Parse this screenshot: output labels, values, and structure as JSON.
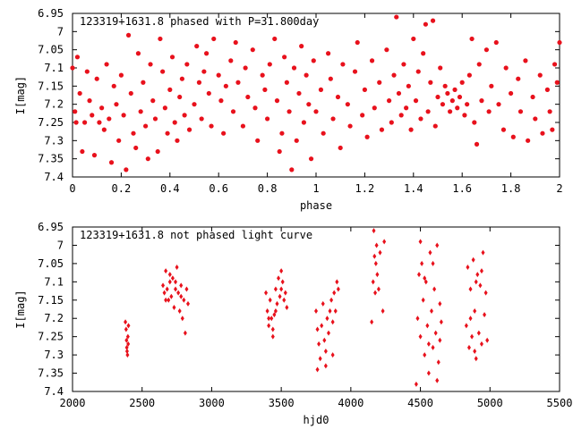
{
  "chart_data": [
    {
      "type": "scatter",
      "title": "123319+1631.8 phased with P=31.800day",
      "xlabel": "phase",
      "ylabel": "I[mag]",
      "xlim": [
        0,
        2
      ],
      "ylim": [
        6.95,
        7.4
      ],
      "y_inverted": true,
      "grid": false,
      "marker": "filled circle",
      "color": "#e8111c",
      "xticks": [
        0,
        0.2,
        0.4,
        0.6,
        0.8,
        1,
        1.2,
        1.4,
        1.6,
        1.8,
        2
      ],
      "xtick_labels": [
        "0",
        "0.2",
        "0.4",
        "0.6",
        "0.8",
        "1",
        "1.2",
        "1.4",
        "1.6",
        "1.8",
        "2"
      ],
      "yticks": [
        6.95,
        7,
        7.05,
        7.1,
        7.15,
        7.2,
        7.25,
        7.3,
        7.35,
        7.4
      ],
      "ytick_labels": [
        "6.95",
        "7",
        "7.05",
        "7.1",
        "7.15",
        "7.2",
        "7.25",
        "7.3",
        "7.35",
        "7.4"
      ],
      "points": [
        [
          0.0,
          7.1
        ],
        [
          0.01,
          7.22
        ],
        [
          0.015,
          7.25
        ],
        [
          0.02,
          7.07
        ],
        [
          0.03,
          7.17
        ],
        [
          0.04,
          7.33
        ],
        [
          0.05,
          7.25
        ],
        [
          0.06,
          7.11
        ],
        [
          0.07,
          7.19
        ],
        [
          0.08,
          7.23
        ],
        [
          0.09,
          7.34
        ],
        [
          0.1,
          7.13
        ],
        [
          0.11,
          7.25
        ],
        [
          0.12,
          7.21
        ],
        [
          0.13,
          7.27
        ],
        [
          0.14,
          7.09
        ],
        [
          0.15,
          7.24
        ],
        [
          0.16,
          7.36
        ],
        [
          0.17,
          7.15
        ],
        [
          0.18,
          7.2
        ],
        [
          0.19,
          7.3
        ],
        [
          0.2,
          7.12
        ],
        [
          0.21,
          7.23
        ],
        [
          0.22,
          7.38
        ],
        [
          0.23,
          7.01
        ],
        [
          0.24,
          7.17
        ],
        [
          0.25,
          7.28
        ],
        [
          0.26,
          7.32
        ],
        [
          0.27,
          7.06
        ],
        [
          0.28,
          7.22
        ],
        [
          0.29,
          7.14
        ],
        [
          0.3,
          7.26
        ],
        [
          0.31,
          7.35
        ],
        [
          0.32,
          7.09
        ],
        [
          0.33,
          7.19
        ],
        [
          0.34,
          7.24
        ],
        [
          0.35,
          7.33
        ],
        [
          0.36,
          7.02
        ],
        [
          0.37,
          7.11
        ],
        [
          0.38,
          7.21
        ],
        [
          0.39,
          7.28
        ],
        [
          0.4,
          7.16
        ],
        [
          0.41,
          7.07
        ],
        [
          0.42,
          7.25
        ],
        [
          0.43,
          7.3
        ],
        [
          0.44,
          7.18
        ],
        [
          0.45,
          7.13
        ],
        [
          0.46,
          7.23
        ],
        [
          0.47,
          7.09
        ],
        [
          0.48,
          7.27
        ],
        [
          0.5,
          7.2
        ],
        [
          0.51,
          7.04
        ],
        [
          0.52,
          7.14
        ],
        [
          0.53,
          7.24
        ],
        [
          0.54,
          7.11
        ],
        [
          0.55,
          7.06
        ],
        [
          0.56,
          7.17
        ],
        [
          0.57,
          7.26
        ],
        [
          0.58,
          7.02
        ],
        [
          0.6,
          7.12
        ],
        [
          0.61,
          7.19
        ],
        [
          0.62,
          7.28
        ],
        [
          0.63,
          7.15
        ],
        [
          0.65,
          7.08
        ],
        [
          0.66,
          7.22
        ],
        [
          0.67,
          7.03
        ],
        [
          0.68,
          7.14
        ],
        [
          0.7,
          7.26
        ],
        [
          0.71,
          7.1
        ],
        [
          0.72,
          7.18
        ],
        [
          0.74,
          7.05
        ],
        [
          0.75,
          7.21
        ],
        [
          0.76,
          7.3
        ],
        [
          0.78,
          7.12
        ],
        [
          0.79,
          7.16
        ],
        [
          0.8,
          7.24
        ],
        [
          0.81,
          7.09
        ],
        [
          0.83,
          7.02
        ],
        [
          0.84,
          7.19
        ],
        [
          0.85,
          7.33
        ],
        [
          0.86,
          7.28
        ],
        [
          0.87,
          7.07
        ],
        [
          0.88,
          7.14
        ],
        [
          0.89,
          7.22
        ],
        [
          0.9,
          7.38
        ],
        [
          0.91,
          7.1
        ],
        [
          0.92,
          7.3
        ],
        [
          0.93,
          7.17
        ],
        [
          0.94,
          7.04
        ],
        [
          0.95,
          7.25
        ],
        [
          0.96,
          7.12
        ],
        [
          0.97,
          7.2
        ],
        [
          0.98,
          7.35
        ],
        [
          0.99,
          7.08
        ],
        [
          1.0,
          7.22
        ],
        [
          1.02,
          7.16
        ],
        [
          1.03,
          7.28
        ],
        [
          1.05,
          7.06
        ],
        [
          1.06,
          7.13
        ],
        [
          1.07,
          7.24
        ],
        [
          1.09,
          7.18
        ],
        [
          1.1,
          7.32
        ],
        [
          1.11,
          7.09
        ],
        [
          1.13,
          7.2
        ],
        [
          1.14,
          7.26
        ],
        [
          1.16,
          7.11
        ],
        [
          1.17,
          7.03
        ],
        [
          1.19,
          7.23
        ],
        [
          1.2,
          7.16
        ],
        [
          1.21,
          7.29
        ],
        [
          1.23,
          7.08
        ],
        [
          1.24,
          7.21
        ],
        [
          1.26,
          7.14
        ],
        [
          1.27,
          7.27
        ],
        [
          1.29,
          7.05
        ],
        [
          1.3,
          7.19
        ],
        [
          1.31,
          7.25
        ],
        [
          1.32,
          7.12
        ],
        [
          1.33,
          6.96
        ],
        [
          1.34,
          7.17
        ],
        [
          1.35,
          7.23
        ],
        [
          1.36,
          7.09
        ],
        [
          1.37,
          7.21
        ],
        [
          1.38,
          7.15
        ],
        [
          1.39,
          7.27
        ],
        [
          1.4,
          7.02
        ],
        [
          1.41,
          7.19
        ],
        [
          1.42,
          7.11
        ],
        [
          1.43,
          7.24
        ],
        [
          1.44,
          7.06
        ],
        [
          1.45,
          6.98
        ],
        [
          1.46,
          7.22
        ],
        [
          1.47,
          7.14
        ],
        [
          1.48,
          6.97
        ],
        [
          1.49,
          7.26
        ],
        [
          1.5,
          7.18
        ],
        [
          1.51,
          7.1
        ],
        [
          1.52,
          7.2
        ],
        [
          1.53,
          7.15
        ],
        [
          1.54,
          7.17
        ],
        [
          1.55,
          7.22
        ],
        [
          1.56,
          7.19
        ],
        [
          1.57,
          7.16
        ],
        [
          1.58,
          7.21
        ],
        [
          1.59,
          7.18
        ],
        [
          1.6,
          7.14
        ],
        [
          1.61,
          7.23
        ],
        [
          1.62,
          7.2
        ],
        [
          1.63,
          7.12
        ],
        [
          1.64,
          7.02
        ],
        [
          1.65,
          7.25
        ],
        [
          1.66,
          7.31
        ],
        [
          1.67,
          7.09
        ],
        [
          1.68,
          7.19
        ],
        [
          1.7,
          7.05
        ],
        [
          1.71,
          7.22
        ],
        [
          1.72,
          7.15
        ],
        [
          1.74,
          7.03
        ],
        [
          1.75,
          7.2
        ],
        [
          1.77,
          7.27
        ],
        [
          1.78,
          7.1
        ],
        [
          1.8,
          7.17
        ],
        [
          1.81,
          7.29
        ],
        [
          1.83,
          7.13
        ],
        [
          1.84,
          7.22
        ],
        [
          1.86,
          7.08
        ],
        [
          1.87,
          7.3
        ],
        [
          1.89,
          7.18
        ],
        [
          1.9,
          7.24
        ],
        [
          1.92,
          7.12
        ],
        [
          1.93,
          7.28
        ],
        [
          1.95,
          7.16
        ],
        [
          1.96,
          7.22
        ],
        [
          1.97,
          7.27
        ],
        [
          1.98,
          7.09
        ],
        [
          1.99,
          7.14
        ],
        [
          2.0,
          7.03
        ]
      ]
    },
    {
      "type": "scatter",
      "title": "123319+1631.8 not phased light curve",
      "xlabel": "hjd0",
      "ylabel": "I[mag]",
      "xlim": [
        2000,
        5500
      ],
      "ylim": [
        6.95,
        7.4
      ],
      "y_inverted": true,
      "grid": false,
      "marker": "filled diamond",
      "color": "#e8111c",
      "xticks": [
        2000,
        2500,
        3000,
        3500,
        4000,
        4500,
        5000,
        5500
      ],
      "xtick_labels": [
        "2000",
        "2500",
        "3000",
        "3500",
        "4000",
        "4500",
        "5000",
        "5500"
      ],
      "yticks": [
        6.95,
        7,
        7.05,
        7.1,
        7.15,
        7.2,
        7.25,
        7.3,
        7.35,
        7.4
      ],
      "ytick_labels": [
        "6.95",
        "7",
        "7.05",
        "7.1",
        "7.15",
        "7.2",
        "7.25",
        "7.3",
        "7.35",
        "7.4"
      ],
      "points": [
        [
          2380,
          7.21
        ],
        [
          2385,
          7.23
        ],
        [
          2388,
          7.26
        ],
        [
          2390,
          7.28
        ],
        [
          2392,
          7.29
        ],
        [
          2395,
          7.3
        ],
        [
          2398,
          7.25
        ],
        [
          2400,
          7.27
        ],
        [
          2402,
          7.22
        ],
        [
          2650,
          7.11
        ],
        [
          2660,
          7.13
        ],
        [
          2670,
          7.07
        ],
        [
          2680,
          7.12
        ],
        [
          2690,
          7.15
        ],
        [
          2700,
          7.1
        ],
        [
          2710,
          7.14
        ],
        [
          2720,
          7.09
        ],
        [
          2730,
          7.17
        ],
        [
          2740,
          7.12
        ],
        [
          2750,
          7.06
        ],
        [
          2760,
          7.13
        ],
        [
          2770,
          7.18
        ],
        [
          2780,
          7.11
        ],
        [
          2790,
          7.2
        ],
        [
          2800,
          7.15
        ],
        [
          2810,
          7.24
        ],
        [
          2820,
          7.12
        ],
        [
          2830,
          7.16
        ],
        [
          2670,
          7.15
        ],
        [
          2700,
          7.08
        ],
        [
          2740,
          7.1
        ],
        [
          2780,
          7.14
        ],
        [
          3390,
          7.13
        ],
        [
          3400,
          7.18
        ],
        [
          3410,
          7.22
        ],
        [
          3420,
          7.15
        ],
        [
          3430,
          7.2
        ],
        [
          3440,
          7.25
        ],
        [
          3450,
          7.19
        ],
        [
          3460,
          7.12
        ],
        [
          3470,
          7.16
        ],
        [
          3480,
          7.09
        ],
        [
          3490,
          7.14
        ],
        [
          3500,
          7.12
        ],
        [
          3510,
          7.1
        ],
        [
          3520,
          7.15
        ],
        [
          3530,
          7.13
        ],
        [
          3540,
          7.17
        ],
        [
          3410,
          7.2
        ],
        [
          3440,
          7.23
        ],
        [
          3460,
          7.18
        ],
        [
          3500,
          7.07
        ],
        [
          3750,
          7.18
        ],
        [
          3760,
          7.23
        ],
        [
          3770,
          7.27
        ],
        [
          3780,
          7.31
        ],
        [
          3790,
          7.22
        ],
        [
          3800,
          7.16
        ],
        [
          3810,
          7.26
        ],
        [
          3820,
          7.29
        ],
        [
          3830,
          7.2
        ],
        [
          3840,
          7.24
        ],
        [
          3850,
          7.18
        ],
        [
          3860,
          7.15
        ],
        [
          3870,
          7.21
        ],
        [
          3880,
          7.13
        ],
        [
          3890,
          7.18
        ],
        [
          3900,
          7.1
        ],
        [
          3910,
          7.12
        ],
        [
          3760,
          7.34
        ],
        [
          3820,
          7.33
        ],
        [
          3870,
          7.3
        ],
        [
          4150,
          7.21
        ],
        [
          4160,
          7.1
        ],
        [
          4165,
          6.96
        ],
        [
          4170,
          7.03
        ],
        [
          4175,
          7.13
        ],
        [
          4180,
          7.05
        ],
        [
          4185,
          7.0
        ],
        [
          4190,
          7.08
        ],
        [
          4200,
          7.12
        ],
        [
          4210,
          7.02
        ],
        [
          4230,
          7.18
        ],
        [
          4240,
          6.99
        ],
        [
          4470,
          7.38
        ],
        [
          4480,
          7.2
        ],
        [
          4490,
          7.08
        ],
        [
          4500,
          7.25
        ],
        [
          4510,
          7.05
        ],
        [
          4520,
          7.15
        ],
        [
          4530,
          7.3
        ],
        [
          4540,
          7.1
        ],
        [
          4550,
          7.22
        ],
        [
          4560,
          7.35
        ],
        [
          4570,
          7.02
        ],
        [
          4580,
          7.18
        ],
        [
          4590,
          7.28
        ],
        [
          4600,
          7.12
        ],
        [
          4610,
          7.24
        ],
        [
          4620,
          7.0
        ],
        [
          4630,
          7.32
        ],
        [
          4640,
          7.16
        ],
        [
          4650,
          7.21
        ],
        [
          4500,
          6.99
        ],
        [
          4530,
          7.09
        ],
        [
          4560,
          7.27
        ],
        [
          4590,
          7.05
        ],
        [
          4620,
          7.37
        ],
        [
          4640,
          7.26
        ],
        [
          4830,
          7.22
        ],
        [
          4840,
          7.06
        ],
        [
          4850,
          7.28
        ],
        [
          4860,
          7.12
        ],
        [
          4870,
          7.25
        ],
        [
          4880,
          7.04
        ],
        [
          4890,
          7.18
        ],
        [
          4900,
          7.31
        ],
        [
          4910,
          7.08
        ],
        [
          4920,
          7.24
        ],
        [
          4930,
          7.11
        ],
        [
          4940,
          7.27
        ],
        [
          4950,
          7.02
        ],
        [
          4960,
          7.19
        ],
        [
          4970,
          7.13
        ],
        [
          4980,
          7.26
        ],
        [
          4860,
          7.2
        ],
        [
          4900,
          7.1
        ],
        [
          4940,
          7.07
        ],
        [
          4890,
          7.29
        ]
      ]
    }
  ]
}
